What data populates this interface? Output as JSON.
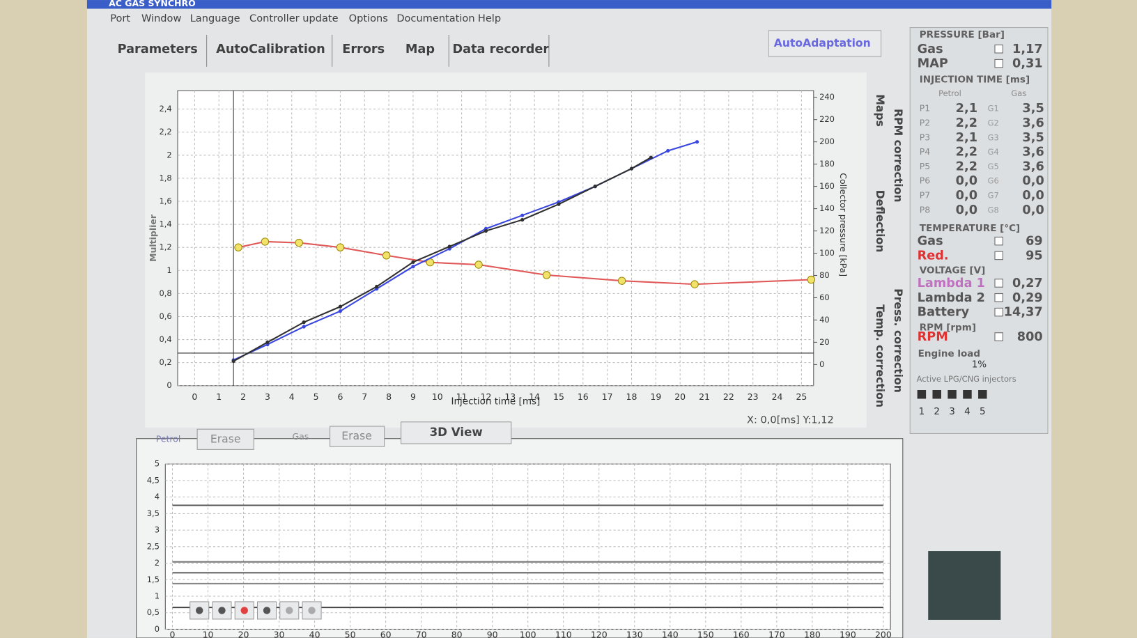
{
  "window": {
    "title": "AC GAS SYNCHRO"
  },
  "menu": [
    "Port",
    "Window",
    "Language",
    "Controller update",
    "Options",
    "Documentation",
    "Help"
  ],
  "tabs": [
    "Parameters",
    "AutoCalibration",
    "Errors",
    "Map",
    "Data recorder"
  ],
  "autoadaptation": "AutoAdaptation",
  "side_tabs": [
    "Maps",
    "RPM correction",
    "Deflection",
    "Press. correction",
    "Temp. correction"
  ],
  "controls": {
    "petrol": "Petrol",
    "erase_petrol": "Erase",
    "gas": "Gas",
    "erase_gas": "Erase",
    "view3d": "3D View",
    "cursor": "X: 0,0[ms] Y:1,12"
  },
  "panel": {
    "pressure": {
      "title": "PRESSURE [Bar]",
      "rows": [
        {
          "label": "Gas",
          "value": "1,17"
        },
        {
          "label": "MAP",
          "value": "0,31"
        }
      ]
    },
    "injection": {
      "title": "INJECTION TIME [ms]",
      "headers": [
        "Petrol",
        "Gas"
      ],
      "rows": [
        [
          "P1",
          "2,1",
          "G1",
          "3,5"
        ],
        [
          "P2",
          "2,2",
          "G2",
          "3,6"
        ],
        [
          "P3",
          "2,1",
          "G3",
          "3,5"
        ],
        [
          "P4",
          "2,2",
          "G4",
          "3,6"
        ],
        [
          "P5",
          "2,2",
          "G5",
          "3,6"
        ],
        [
          "P6",
          "0,0",
          "G6",
          "0,0"
        ],
        [
          "P7",
          "0,0",
          "G7",
          "0,0"
        ],
        [
          "P8",
          "0,0",
          "G8",
          "0,0"
        ]
      ]
    },
    "temperature": {
      "title": "TEMPERATURE [°C]",
      "rows": [
        {
          "label": "Gas",
          "value": "69"
        },
        {
          "label": "Red.",
          "value": "95",
          "color": "#e03030"
        }
      ]
    },
    "voltage": {
      "title": "VOLTAGE [V]",
      "rows": [
        {
          "label": "Lambda 1",
          "value": "0,27",
          "color": "#c070c0"
        },
        {
          "label": "Lambda 2",
          "value": "0,29"
        },
        {
          "label": "Battery",
          "value": "14,37"
        }
      ]
    },
    "rpm": {
      "title": "RPM [rpm]",
      "rows": [
        {
          "label": "RPM",
          "value": "800",
          "color": "#e03030"
        }
      ]
    },
    "load": {
      "title": "Engine load",
      "value": "1%"
    },
    "injectors": {
      "title": "Active LPG/CNG injectors",
      "labels": [
        "1",
        "2",
        "3",
        "4",
        "5"
      ]
    }
  },
  "chart_data": [
    {
      "type": "line",
      "xlabel": "Injection time [ms]",
      "ylabel": "Multiplier",
      "y2label": "Collector pressure [kPa]",
      "xlim": [
        -0.7,
        25.5
      ],
      "xticks": [
        0,
        1,
        2,
        3,
        4,
        5,
        6,
        7,
        8,
        9,
        10,
        11,
        12,
        13,
        14,
        15,
        16,
        17,
        18,
        19,
        20,
        21,
        22,
        23,
        24,
        25
      ],
      "ylim": [
        0,
        2.56
      ],
      "yticks": [
        0,
        {
          "value": 0.2,
          "label": "0,2"
        },
        {
          "value": 0.4,
          "label": "0,4"
        },
        {
          "value": 0.6,
          "label": "0,6"
        },
        {
          "value": 0.8,
          "label": "0,8"
        },
        1,
        {
          "value": 1.2,
          "label": "1,2"
        },
        {
          "value": 1.4,
          "label": "1,4"
        },
        {
          "value": 1.6,
          "label": "1,6"
        },
        {
          "value": 1.8,
          "label": "1,8"
        },
        2,
        {
          "value": 2.2,
          "label": "2,2"
        },
        {
          "value": 2.4,
          "label": "2,4"
        }
      ],
      "y2lim": [
        -19,
        246
      ],
      "y2ticks": [
        0,
        20,
        40,
        60,
        80,
        100,
        120,
        140,
        160,
        180,
        200,
        220,
        240
      ],
      "grid": true,
      "series": [
        {
          "color": "#e05858",
          "marker_color": "#f2e26a",
          "x": [
            1.8,
            2.9,
            4.3,
            6.0,
            7.9,
            9.7,
            11.7,
            14.5,
            17.6,
            20.6,
            25.4
          ],
          "values": [
            1.2,
            1.25,
            1.24,
            1.2,
            1.13,
            1.07,
            1.05,
            0.96,
            0.91,
            0.88,
            0.92
          ]
        },
        {
          "color": "#3a46e0",
          "axis": "y2",
          "x": [
            1.6,
            3,
            4.5,
            6,
            7.5,
            9,
            10.5,
            12,
            13.5,
            15,
            16.5,
            18,
            19.5,
            20.7
          ],
          "values": [
            4,
            18,
            34,
            48,
            68,
            88,
            104,
            122,
            134,
            146,
            160,
            176,
            192,
            200
          ]
        },
        {
          "color": "#303030",
          "axis": "y2",
          "x": [
            1.6,
            3,
            4.5,
            6,
            7.5,
            9,
            10.5,
            12,
            13.5,
            15,
            16.5,
            18,
            18.8
          ],
          "values": [
            3,
            20,
            38,
            52,
            70,
            92,
            106,
            120,
            130,
            144,
            160,
            176,
            186
          ]
        }
      ]
    },
    {
      "type": "line",
      "xlim": [
        -2,
        202
      ],
      "xticks": [
        0,
        10,
        20,
        30,
        40,
        50,
        60,
        70,
        80,
        90,
        100,
        110,
        120,
        130,
        140,
        150,
        160,
        170,
        180,
        190,
        200
      ],
      "ylim": [
        0,
        5
      ],
      "yticks": [
        0,
        {
          "value": 0.5,
          "label": "0,5"
        },
        1,
        {
          "value": 1.5,
          "label": "1,5"
        },
        2,
        {
          "value": 2.5,
          "label": "2,5"
        },
        3,
        {
          "value": 3.5,
          "label": "3,5"
        },
        4,
        {
          "value": 4.5,
          "label": "4,5"
        },
        5
      ],
      "grid": true,
      "series": [
        {
          "color": "#555555",
          "x": [
            0,
            200
          ],
          "values": [
            3.75,
            3.75
          ]
        },
        {
          "color": "#777777",
          "x": [
            0,
            200
          ],
          "values": [
            2.04,
            2.04
          ]
        },
        {
          "color": "#666666",
          "x": [
            0,
            200
          ],
          "values": [
            1.71,
            1.71
          ]
        },
        {
          "color": "#888888",
          "x": [
            0,
            200
          ],
          "values": [
            1.38,
            1.38
          ]
        },
        {
          "color": "#444444",
          "x": [
            0,
            200
          ],
          "values": [
            0.66,
            0.66
          ]
        }
      ]
    }
  ]
}
